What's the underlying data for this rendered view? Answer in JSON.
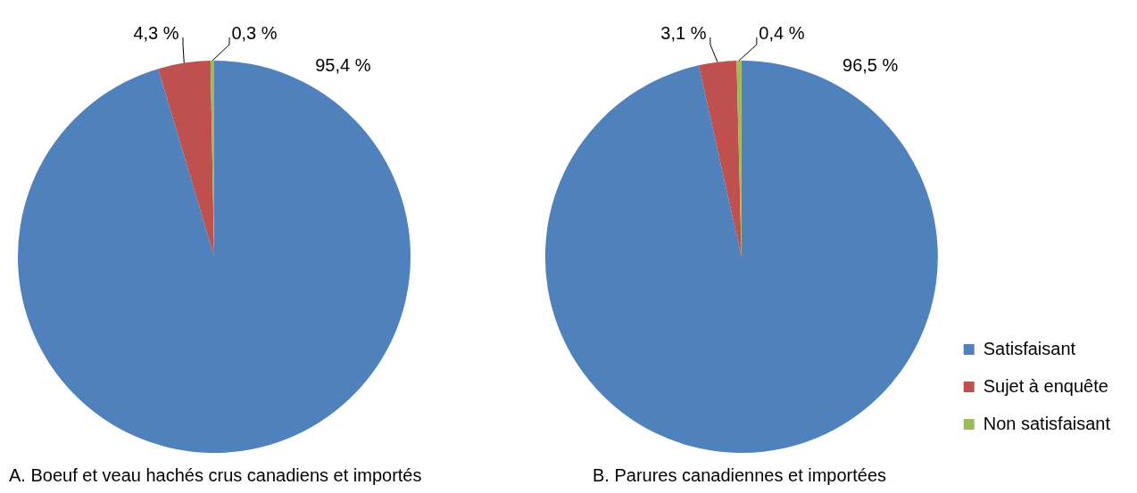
{
  "chart_data": [
    {
      "type": "pie",
      "title": "A. Boeuf et veau hachés crus canadiens et importés",
      "categories": [
        null,
        null,
        null
      ],
      "values": [
        95.4,
        4.3,
        0.3
      ],
      "colors": [
        "#4f81bd",
        "#c0504d",
        "#9bbb59"
      ],
      "value_labels": [
        "95,4 %",
        "4,3 %",
        "0,3 %"
      ],
      "legend": false
    },
    {
      "type": "pie",
      "title": "B. Parures canadiennes et importées",
      "categories": [
        "Satisfaisant",
        "Sujet à enquête",
        "Non satisfaisant"
      ],
      "values": [
        96.5,
        3.1,
        0.4
      ],
      "colors": [
        "#4f81bd",
        "#c0504d",
        "#9bbb59"
      ],
      "value_labels": [
        "96,5 %",
        "3,1 %",
        "0,4 %"
      ],
      "legend": "right"
    }
  ]
}
